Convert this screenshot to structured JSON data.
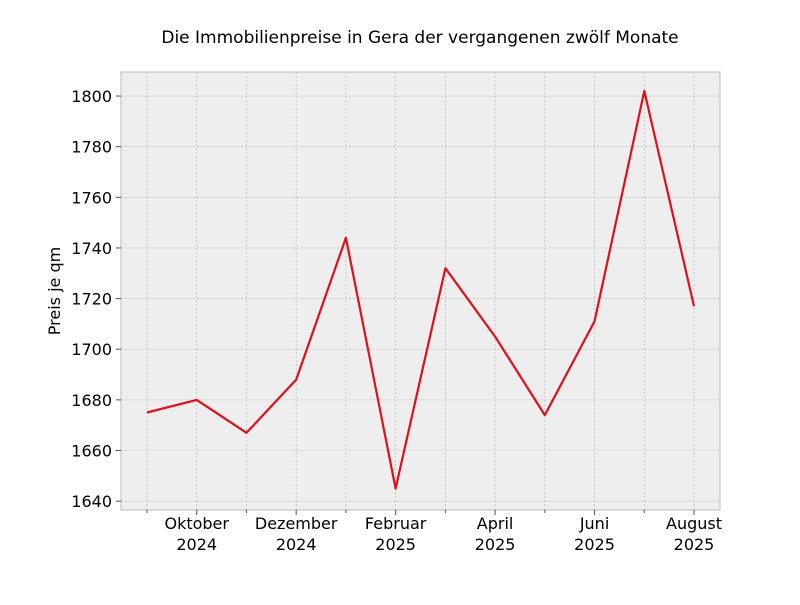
{
  "chart_data": {
    "type": "line",
    "title": "Die Immobilienpreise in Gera der vergangenen zwölf Monate",
    "xlabel": "",
    "ylabel": "Preis je qm",
    "x": [
      "2024-09",
      "2024-10",
      "2024-11",
      "2024-12",
      "2025-01",
      "2025-02",
      "2025-03",
      "2025-04",
      "2025-05",
      "2025-06",
      "2025-07",
      "2025-08"
    ],
    "series": [
      {
        "values": [
          1675,
          1680,
          1667,
          1688,
          1744,
          1645,
          1732,
          1705,
          1674,
          1711,
          1802,
          1717
        ],
        "color": "#e0101a"
      }
    ],
    "x_major_ticks": [
      {
        "month": "Oktober",
        "year": "2024"
      },
      {
        "month": "Dezember",
        "year": "2024"
      },
      {
        "month": "Februar",
        "year": "2025"
      },
      {
        "month": "April",
        "year": "2025"
      },
      {
        "month": "Juni",
        "year": "2025"
      },
      {
        "month": "August",
        "year": "2025"
      }
    ],
    "y_ticks": [
      "1640",
      "1660",
      "1680",
      "1700",
      "1720",
      "1740",
      "1760",
      "1780",
      "1800"
    ],
    "ylim": [
      1636.5,
      1809.5
    ],
    "grid": true,
    "plot_background": "#eeeeee",
    "grid_color": "#b0b0b0"
  }
}
